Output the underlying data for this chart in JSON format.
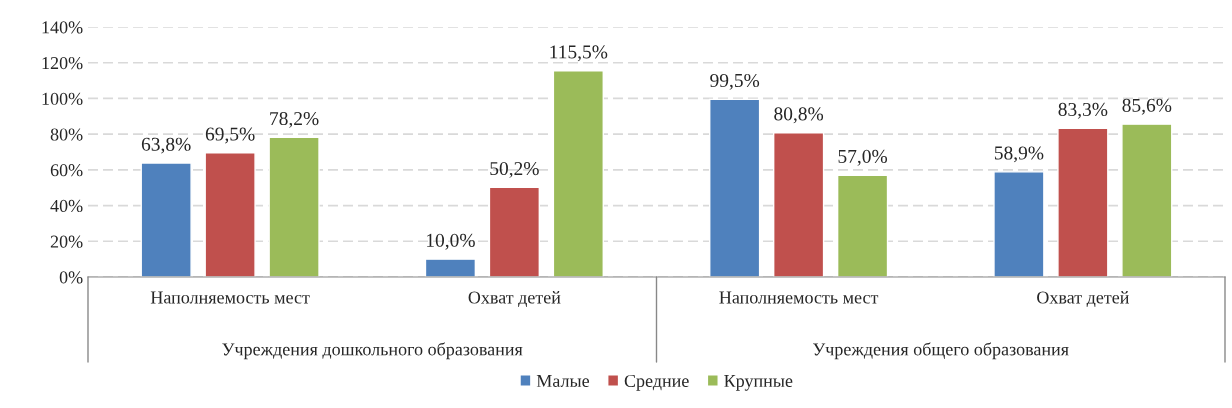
{
  "chart_data": {
    "type": "bar",
    "categories": [
      "Наполняемость мест",
      "Охват детей",
      "Наполняемость мест",
      "Охват детей"
    ],
    "series": [
      {
        "name": "Малые",
        "color": "#4f81bd",
        "values": [
          63.8,
          10.0,
          99.5,
          58.9
        ],
        "value_labels": [
          "63,8%",
          "10,0%",
          "99,5%",
          "58,9%"
        ]
      },
      {
        "name": "Средние",
        "color": "#c0504d",
        "values": [
          69.5,
          50.2,
          80.8,
          83.3
        ],
        "value_labels": [
          "69,5%",
          "50,2%",
          "80,8%",
          "83,3%"
        ]
      },
      {
        "name": "Крупные",
        "color": "#9bbb59",
        "values": [
          78.2,
          115.5,
          57.0,
          85.6
        ],
        "value_labels": [
          "78,2%",
          "115,5%",
          "57,0%",
          "85,6%"
        ]
      }
    ],
    "annotations": [
      "Учреждения дошкольного образования",
      "Учреждения общего образования"
    ],
    "ylim": [
      0,
      140
    ],
    "yticks": [
      {
        "value": 0,
        "label": "0%"
      },
      {
        "value": 20,
        "label": "20%"
      },
      {
        "value": 40,
        "label": "40%"
      },
      {
        "value": 60,
        "label": "60%"
      },
      {
        "value": 80,
        "label": "80%"
      },
      {
        "value": 100,
        "label": "100%"
      },
      {
        "value": 120,
        "label": "120%"
      },
      {
        "value": 140,
        "label": "140%"
      }
    ],
    "grid": "y",
    "legend": "bottom"
  }
}
